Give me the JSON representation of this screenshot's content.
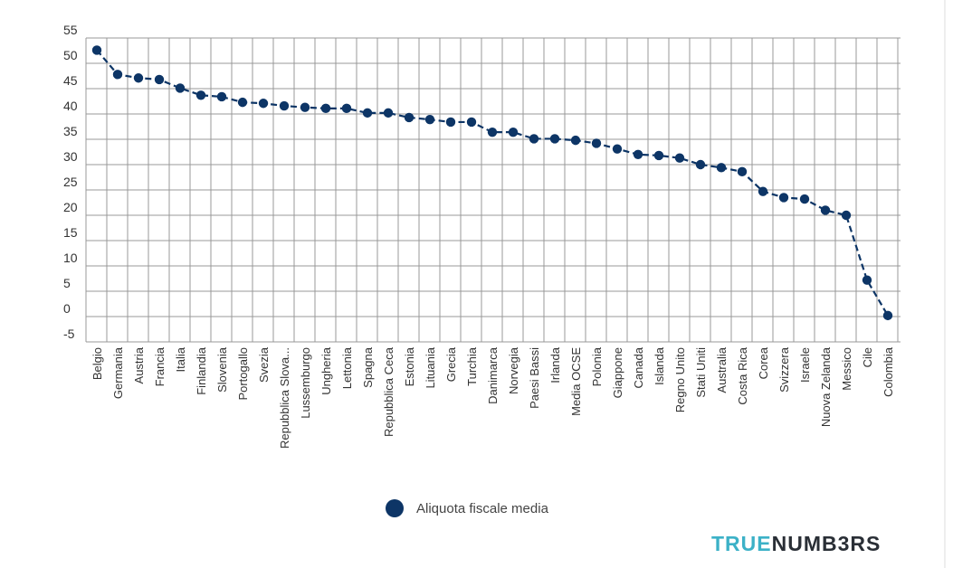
{
  "chart_data": {
    "type": "line",
    "categories": [
      "Belgio",
      "Germania",
      "Austria",
      "Francia",
      "Italia",
      "Finlandia",
      "Slovenia",
      "Portogallo",
      "Svezia",
      "Repubblica Slova...",
      "Lussemburgo",
      "Ungheria",
      "Lettonia",
      "Spagna",
      "Repubblica Ceca",
      "Estonia",
      "Lituania",
      "Grecia",
      "Turchia",
      "Danimarca",
      "Norvegia",
      "Paesi Bassi",
      "Irlanda",
      "Media OCSE",
      "Polonia",
      "Giappone",
      "Canada",
      "Islanda",
      "Regno Unito",
      "Stati Uniti",
      "Australia",
      "Costa Rica",
      "Corea",
      "Svizzera",
      "Israele",
      "Nuova Zelanda",
      "Messico",
      "Cile",
      "Colombia"
    ],
    "series": [
      {
        "name": "Aliquota fiscale media",
        "values": [
          52.6,
          47.8,
          47.1,
          46.8,
          45.1,
          43.7,
          43.4,
          42.3,
          42.1,
          41.6,
          41.3,
          41.1,
          41.1,
          40.2,
          40.2,
          39.3,
          38.9,
          38.4,
          38.4,
          36.4,
          36.4,
          35.1,
          35.1,
          34.8,
          34.2,
          33.1,
          32.0,
          31.8,
          31.3,
          30.0,
          29.4,
          28.6,
          24.7,
          23.5,
          23.2,
          21.0,
          20.0,
          7.2,
          0.2
        ]
      }
    ],
    "yticks": [
      "55",
      "50",
      "45",
      "40",
      "35",
      "30",
      "25",
      "20",
      "15",
      "10",
      "5",
      "0",
      "-5"
    ],
    "ylim": [
      -5,
      55
    ],
    "grid": true,
    "legend_position": "bottom-center",
    "colors": {
      "line": "#0d3566",
      "grid": "#999999",
      "axis": "#333333"
    }
  },
  "legend": {
    "label": "Aliquota fiscale media"
  },
  "brand": {
    "part1": "TRUE",
    "part2": "NUMB3RS"
  }
}
